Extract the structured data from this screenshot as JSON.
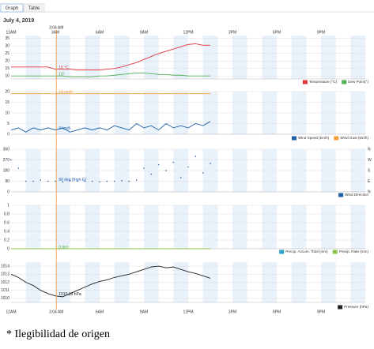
{
  "tabs": [
    "Graph",
    "Table"
  ],
  "date": "July 4, 2019",
  "time_axis": {
    "xlim": [
      0,
      24
    ],
    "xticks": [
      {
        "value": 0,
        "label": "12AM"
      },
      {
        "value": 3,
        "label": "3AM"
      },
      {
        "value": 6,
        "label": "6AM"
      },
      {
        "value": 9,
        "label": "9AM"
      },
      {
        "value": 12,
        "label": "12PM"
      },
      {
        "value": 15,
        "label": "3PM"
      },
      {
        "value": 18,
        "label": "6PM"
      },
      {
        "value": 21,
        "label": "9PM"
      }
    ],
    "cursor": {
      "value": 3.067,
      "label": "3:04 AM"
    }
  },
  "chart_data": [
    {
      "type": "line",
      "x": [
        0,
        0.5,
        1,
        1.5,
        2,
        2.5,
        3,
        3.5,
        4,
        4.5,
        5,
        5.5,
        6,
        6.5,
        7,
        7.5,
        8,
        8.5,
        9,
        9.5,
        10,
        10.5,
        11,
        11.5,
        12,
        12.5,
        13,
        13.5
      ],
      "ylim": [
        8,
        37
      ],
      "yticks": [
        10,
        15,
        20,
        25,
        30,
        35
      ],
      "grid": true,
      "series": [
        {
          "name": "Temperature (°C)",
          "color": "#e0343a",
          "cursor_label": "15 °C",
          "values": [
            16,
            16,
            16,
            16,
            16,
            16,
            14.5,
            14.5,
            14.5,
            14,
            14,
            14,
            14,
            14.5,
            15,
            16,
            17.5,
            19,
            21,
            23,
            25,
            26.5,
            28,
            29.5,
            31,
            31.5,
            30.5,
            30.5
          ]
        },
        {
          "name": "Dew Point(°)",
          "color": "#4caf50",
          "cursor_label": "10°",
          "values": [
            10,
            10,
            10,
            10,
            10,
            10,
            10,
            10,
            9.5,
            9.5,
            9.5,
            9.5,
            10,
            10,
            10.5,
            11,
            11.5,
            12,
            12,
            11.5,
            11,
            11,
            10.5,
            10.5,
            10,
            10,
            10,
            10
          ]
        }
      ]
    },
    {
      "type": "line",
      "x": [
        0,
        0.5,
        1,
        1.5,
        2,
        2.5,
        3,
        3.5,
        4,
        4.5,
        5,
        5.5,
        6,
        6.5,
        7,
        7.5,
        8,
        8.5,
        9,
        9.5,
        10,
        10.5,
        11,
        11.5,
        12,
        12.5,
        13,
        13.5
      ],
      "ylim": [
        0,
        20
      ],
      "yticks": [
        0,
        5,
        10,
        15,
        20
      ],
      "grid": true,
      "series": [
        {
          "name": "Wind Speed (km/h)",
          "color": "#1f5fa8",
          "cursor_label": "3 km/h",
          "values": [
            2,
            3,
            1,
            3,
            2,
            3,
            2,
            3,
            1,
            2,
            3,
            2,
            3,
            2,
            4,
            3,
            2,
            5,
            3,
            4,
            2,
            5,
            3,
            4,
            3,
            5,
            4,
            6
          ]
        },
        {
          "name": "Wind Gust (km/h)",
          "color": "#f59b3a",
          "cursor_label": "19 km/h",
          "values": [
            19,
            19,
            19,
            19,
            19,
            19,
            19,
            19,
            19,
            19,
            19,
            19,
            19,
            19,
            19,
            19,
            19,
            19,
            19,
            19,
            19,
            19,
            19,
            19,
            19,
            19,
            19,
            19
          ]
        }
      ]
    },
    {
      "type": "scatter",
      "x": [
        0,
        0.5,
        1,
        1.5,
        2,
        2.5,
        3,
        3.5,
        4,
        4.5,
        5,
        5.5,
        6,
        6.5,
        7,
        7.5,
        8,
        8.5,
        9,
        9.5,
        10,
        10.5,
        11,
        11.5,
        12,
        12.5,
        13,
        13.5
      ],
      "ylim": [
        0,
        360
      ],
      "yticks": [
        0,
        90,
        180,
        270,
        360
      ],
      "grid": true,
      "y2lim": [
        0,
        360
      ],
      "y2ticks": [
        {
          "value": 0,
          "label": "N"
        },
        {
          "value": 90,
          "label": "E"
        },
        {
          "value": 180,
          "label": "S"
        },
        {
          "value": 270,
          "label": "W"
        },
        {
          "value": 360,
          "label": "N"
        }
      ],
      "series": [
        {
          "name": "Wind Direction",
          "color": "#1f5fa8",
          "cursor_label": "90 deg (from E)",
          "values": [
            270,
            200,
            90,
            90,
            100,
            90,
            90,
            85,
            95,
            90,
            90,
            90,
            85,
            90,
            90,
            95,
            90,
            100,
            200,
            150,
            230,
            180,
            250,
            120,
            210,
            300,
            160,
            240
          ]
        }
      ]
    },
    {
      "type": "line",
      "x": [
        0,
        0.5,
        1,
        1.5,
        2,
        2.5,
        3,
        3.5,
        4,
        4.5,
        5,
        5.5,
        6,
        6.5,
        7,
        7.5,
        8,
        8.5,
        9,
        9.5,
        10,
        10.5,
        11,
        11.5,
        12,
        12.5,
        13,
        13.5
      ],
      "ylim": [
        0,
        1
      ],
      "yticks": [
        0,
        0.2,
        0.4,
        0.6,
        0.8,
        1
      ],
      "grid": true,
      "series": [
        {
          "name": "Precip. Accum. Total (mm)",
          "color": "#29a3c9",
          "cursor_label": "0 mm",
          "values": [
            0,
            0,
            0,
            0,
            0,
            0,
            0,
            0,
            0,
            0,
            0,
            0,
            0,
            0,
            0,
            0,
            0,
            0,
            0,
            0,
            0,
            0,
            0,
            0,
            0,
            0,
            0,
            0
          ]
        },
        {
          "name": "Precip. Rate (mm)",
          "color": "#8bc34a",
          "cursor_label": "0 mm",
          "values": [
            0,
            0,
            0,
            0,
            0,
            0,
            0,
            0,
            0,
            0,
            0,
            0,
            0,
            0,
            0,
            0,
            0,
            0,
            0,
            0,
            0,
            0,
            0,
            0,
            0,
            0,
            0,
            0
          ]
        }
      ]
    },
    {
      "type": "line",
      "x": [
        0,
        0.5,
        1,
        1.5,
        2,
        2.5,
        3,
        3.5,
        4,
        4.5,
        5,
        5.5,
        6,
        6.5,
        7,
        7.5,
        8,
        8.5,
        9,
        9.5,
        10,
        10.5,
        11,
        11.5,
        12,
        12.5,
        13,
        13.5
      ],
      "ylim": [
        1009.5,
        1014.5
      ],
      "yticks": [
        1010,
        1011,
        1012,
        1013,
        1014
      ],
      "grid": true,
      "series": [
        {
          "name": "Pressure (hPa)",
          "color": "#222222",
          "cursor_label": "1010.33 hPa",
          "values": [
            1013,
            1012.6,
            1012,
            1011.6,
            1011,
            1010.6,
            1010.3,
            1010.2,
            1010.6,
            1011,
            1011.4,
            1011.8,
            1012.1,
            1012.3,
            1012.6,
            1012.8,
            1013,
            1013.3,
            1013.6,
            1013.9,
            1014,
            1013.8,
            1013.9,
            1013.6,
            1013.3,
            1013.1,
            1012.8,
            1012.5
          ]
        }
      ]
    }
  ],
  "footnote": "* Ilegibilidad de origen"
}
